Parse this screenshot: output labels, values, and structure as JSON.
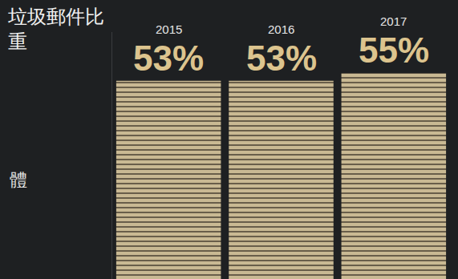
{
  "chart_data": {
    "type": "bar",
    "title": "垃圾郵件比重",
    "categories": [
      "2015",
      "2016",
      "2017"
    ],
    "values": [
      53,
      53,
      55
    ],
    "value_labels": [
      "53%",
      "53%",
      "55%"
    ],
    "data_labels": true,
    "color": "#c9b993",
    "ylim": [
      0,
      66
    ],
    "tick_labels": false,
    "grid": false,
    "annotations": [
      "體"
    ]
  }
}
